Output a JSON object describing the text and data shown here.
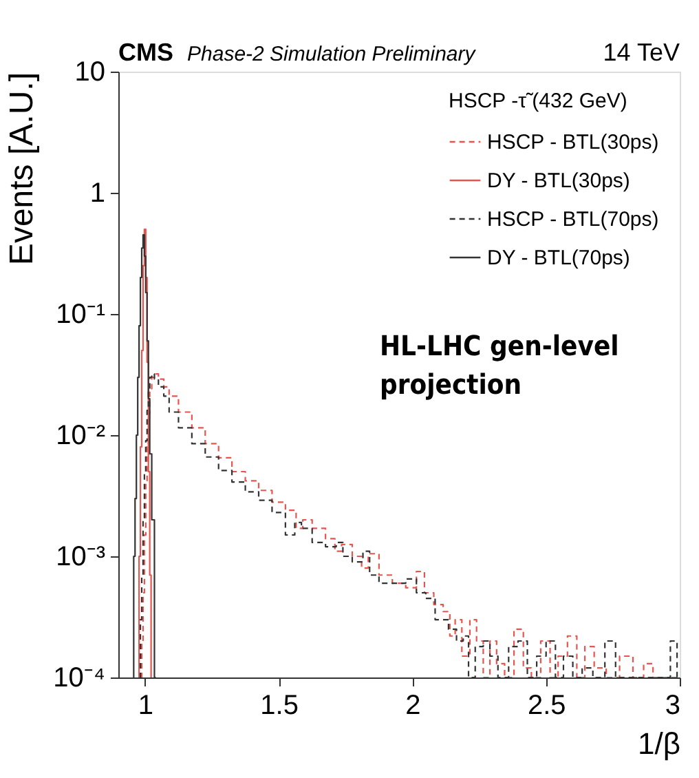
{
  "chart_data": {
    "type": "step",
    "title": "CMS",
    "subtitle": "Phase-2 Simulation Preliminary",
    "xlabel": "1/β",
    "ylabel": "Events [A.U.]",
    "legend_title": "HSCP -τ̃ (432 GeV)",
    "annotations": [
      "14 TeV",
      "HL-LHC gen-level projection"
    ],
    "log": "y",
    "xlim": [
      0.9,
      3
    ],
    "ylim": [
      0.0001,
      10
    ],
    "xticks": [
      1,
      1.5,
      2,
      2.5,
      3
    ],
    "yticks": [
      {
        "value": 0.0001,
        "label": "10⁻⁴"
      },
      {
        "value": 0.001,
        "label": "10⁻³"
      },
      {
        "value": 0.01,
        "label": "10⁻²"
      },
      {
        "value": 0.1,
        "label": "10⁻¹"
      },
      1,
      10
    ],
    "grid": false,
    "legend": "top right",
    "series": [
      {
        "name": "HSCP - BTL(30ps)",
        "color": "#e8554e",
        "line_style": "dashed",
        "x": [
          0.985,
          0.99,
          0.995,
          1.0,
          1.005,
          1.01,
          1.015,
          1.02,
          1.03,
          1.04,
          1.06,
          1.08,
          1.1,
          1.15,
          1.2,
          1.25,
          1.3,
          1.35,
          1.4,
          1.45,
          1.5,
          1.55,
          1.58,
          1.6,
          1.65,
          1.7,
          1.72,
          1.75,
          1.8,
          1.82,
          1.85,
          1.9,
          1.95,
          2.0,
          2.03,
          2.06,
          2.1,
          2.13,
          2.15,
          2.17,
          2.2,
          2.23,
          2.25,
          2.28,
          2.3,
          2.33,
          2.36,
          2.4,
          2.43,
          2.46,
          2.5,
          2.53,
          2.56,
          2.6,
          2.63,
          2.66,
          2.7,
          2.75,
          2.8,
          2.85,
          2.88,
          2.92,
          3.0
        ],
        "values": [
          0.0001,
          0.0002,
          0.0005,
          0.0015,
          0.004,
          0.008,
          0.015,
          0.023,
          0.03,
          0.032,
          0.029,
          0.025,
          0.021,
          0.0155,
          0.0115,
          0.0085,
          0.0065,
          0.005,
          0.0042,
          0.0035,
          0.0028,
          0.0024,
          0.0017,
          0.002,
          0.0017,
          0.0014,
          0.0011,
          0.00125,
          0.001,
          0.0008,
          0.00105,
          0.0007,
          0.0006,
          0.00055,
          0.00075,
          0.0005,
          0.0004,
          0.00035,
          0.00022,
          0.0003,
          0.00015,
          0.0003,
          0.0002,
          0.0001,
          0.0002,
          0.00013,
          0.0001,
          0.00025,
          0.00012,
          0.0001,
          0.0002,
          0.0001,
          0.00015,
          0.00022,
          0.0001,
          0.00018,
          0.00012,
          0.0001,
          0.00015,
          0.0001,
          0.00013,
          0.0001,
          0.0001
        ]
      },
      {
        "name": "DY - BTL(30ps)",
        "color": "#e8554e",
        "line_style": "solid",
        "x": [
          0.975,
          0.98,
          0.985,
          0.99,
          0.995,
          1.0,
          1.005,
          1.01,
          1.015,
          1.02,
          1.025
        ],
        "values": [
          0.0001,
          0.001,
          0.008,
          0.05,
          0.25,
          0.5,
          0.2,
          0.04,
          0.005,
          0.0007,
          0.0001
        ]
      },
      {
        "name": "HSCP - BTL(70ps)",
        "color": "#333333",
        "line_style": "dashed",
        "x": [
          0.98,
          0.985,
          0.99,
          0.995,
          1.0,
          1.005,
          1.01,
          1.015,
          1.02,
          1.03,
          1.04,
          1.06,
          1.08,
          1.1,
          1.15,
          1.2,
          1.25,
          1.3,
          1.35,
          1.4,
          1.45,
          1.5,
          1.55,
          1.57,
          1.6,
          1.65,
          1.7,
          1.73,
          1.75,
          1.8,
          1.83,
          1.85,
          1.9,
          1.95,
          2.0,
          2.03,
          2.07,
          2.1,
          2.12,
          2.15,
          2.18,
          2.2,
          2.22,
          2.25,
          2.28,
          2.3,
          2.34,
          2.38,
          2.41,
          2.45,
          2.48,
          2.52,
          2.55,
          2.58,
          2.62,
          2.65,
          2.7,
          2.74,
          2.78,
          2.82,
          2.86,
          2.9,
          2.95,
          2.98,
          3.0
        ],
        "values": [
          0.0001,
          0.0003,
          0.0007,
          0.002,
          0.005,
          0.009,
          0.016,
          0.024,
          0.03,
          0.032,
          0.029,
          0.025,
          0.021,
          0.0155,
          0.0115,
          0.0085,
          0.0066,
          0.0051,
          0.0041,
          0.0034,
          0.0029,
          0.0023,
          0.0015,
          0.0019,
          0.0017,
          0.0013,
          0.0012,
          0.0013,
          0.001,
          0.0009,
          0.0011,
          0.0007,
          0.0006,
          0.0006,
          0.00065,
          0.0005,
          0.00045,
          0.0003,
          0.0003,
          0.00025,
          0.0002,
          0.00022,
          0.0001,
          0.00018,
          0.0002,
          0.00015,
          0.0001,
          0.00018,
          0.0002,
          0.0001,
          0.00015,
          0.0002,
          0.0001,
          0.00015,
          0.0001,
          0.00012,
          0.0001,
          0.0002,
          0.0001,
          0.0001,
          0.0001,
          0.0001,
          0.0001,
          0.0002,
          0.0001
        ]
      },
      {
        "name": "DY - BTL(70ps)",
        "color": "#333333",
        "line_style": "solid",
        "x": [
          0.955,
          0.96,
          0.965,
          0.97,
          0.975,
          0.98,
          0.985,
          0.99,
          0.995,
          1.0,
          1.005,
          1.01,
          1.015,
          1.02,
          1.03,
          1.04
        ],
        "values": [
          0.0001,
          0.001,
          0.003,
          0.01,
          0.03,
          0.08,
          0.2,
          0.35,
          0.45,
          0.3,
          0.15,
          0.06,
          0.02,
          0.007,
          0.002,
          0.0001
        ]
      }
    ]
  }
}
